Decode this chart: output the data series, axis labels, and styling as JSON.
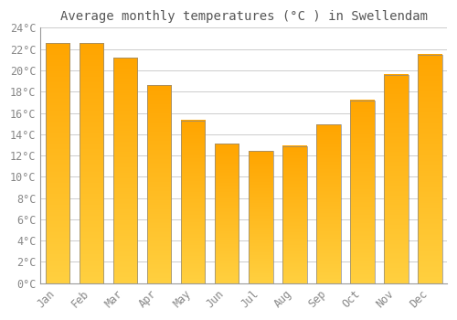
{
  "title": "Average monthly temperatures (°C ) in Swellendam",
  "months": [
    "Jan",
    "Feb",
    "Mar",
    "Apr",
    "May",
    "Jun",
    "Jul",
    "Aug",
    "Sep",
    "Oct",
    "Nov",
    "Dec"
  ],
  "values": [
    22.6,
    22.6,
    21.2,
    18.6,
    15.3,
    13.1,
    12.4,
    12.9,
    14.9,
    17.2,
    19.6,
    21.5
  ],
  "bar_color_top": "#FFA500",
  "bar_color_bottom": "#FFD040",
  "bar_outline_color": "#888888",
  "ylim": [
    0,
    24
  ],
  "ytick_step": 2,
  "background_color": "#FFFFFF",
  "grid_color": "#CCCCCC",
  "title_fontsize": 10,
  "tick_fontsize": 8.5,
  "tick_label_color": "#888888",
  "title_color": "#555555"
}
